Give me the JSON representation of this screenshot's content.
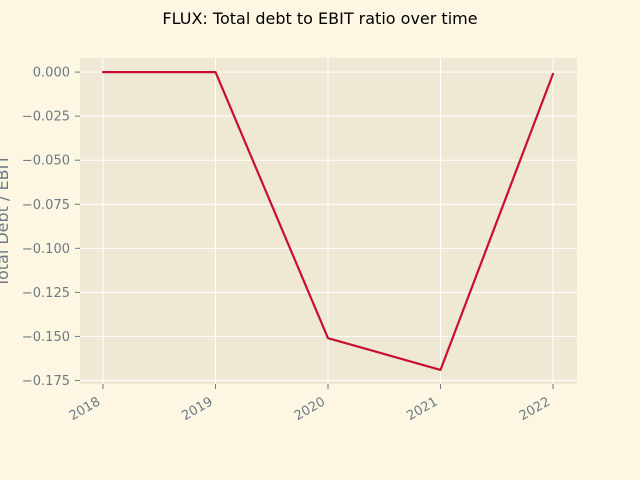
{
  "chart_data": {
    "type": "line",
    "title": "FLUX: Total debt to EBIT ratio over time",
    "xlabel": "",
    "ylabel": "Total Debt / EBIT",
    "x": [
      "2018",
      "2019",
      "2020",
      "2021",
      "2022"
    ],
    "series": [
      {
        "values": [
          0.0,
          0.0,
          -0.151,
          -0.169,
          -0.001
        ]
      }
    ],
    "ylim": [
      -0.177,
      0.008
    ],
    "yticks": [
      0.0,
      -0.025,
      -0.05,
      -0.075,
      -0.1,
      -0.125,
      -0.15,
      -0.175
    ],
    "ytick_labels": [
      "0.000",
      "−0.025",
      "−0.050",
      "−0.075",
      "−0.100",
      "−0.125",
      "−0.150",
      "−0.175"
    ],
    "grid": true,
    "colors": {
      "figure_background": "#fdf6e3",
      "plot_background": "#eee8d5",
      "grid": "#ffffff",
      "line": "#c8102e",
      "tick_text": "#6b7b84"
    }
  }
}
